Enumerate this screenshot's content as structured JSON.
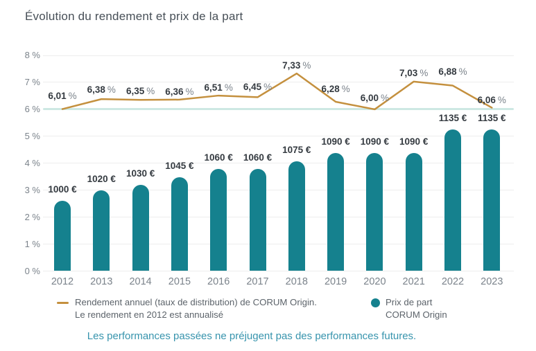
{
  "title": "Évolution du rendement et prix de la part",
  "chart_data": {
    "type": "bar+line",
    "categories": [
      "2012",
      "2013",
      "2014",
      "2015",
      "2016",
      "2017",
      "2018",
      "2019",
      "2020",
      "2021",
      "2022",
      "2023"
    ],
    "series": [
      {
        "name": "Rendement annuel (taux de distribution) de CORUM Origin",
        "type": "line",
        "unit": "%",
        "color": "#c4903e",
        "values": [
          6.01,
          6.38,
          6.35,
          6.36,
          6.51,
          6.45,
          7.33,
          6.28,
          6.0,
          7.03,
          6.88,
          6.06
        ],
        "labels": [
          "6,01 %",
          "6,38 %",
          "6,35 %",
          "6,36 %",
          "6,51 %",
          "6,45 %",
          "7,33 %",
          "6,28 %",
          "6,00 %",
          "7,03 %",
          "6,88 %",
          "6,06 %"
        ]
      },
      {
        "name": "Prix de part CORUM Origin",
        "type": "bar",
        "unit": "€",
        "color": "#15818e",
        "values": [
          1000,
          1020,
          1030,
          1045,
          1060,
          1060,
          1075,
          1090,
          1090,
          1090,
          1135,
          1135
        ],
        "labels": [
          "1000 €",
          "1020 €",
          "1030 €",
          "1045 €",
          "1060 €",
          "1060 €",
          "1075 €",
          "1090 €",
          "1090 €",
          "1090 €",
          "1135 €",
          "1135 €"
        ]
      }
    ],
    "y_axis": {
      "min": 0,
      "max": 8,
      "tick_labels": [
        "0 %",
        "1 %",
        "2 %",
        "3 %",
        "4 %",
        "5 %",
        "6 %",
        "7 %",
        "8 %"
      ],
      "highlight": {
        "value": 6,
        "color": "#cde8e3"
      }
    },
    "grid": "horizontal",
    "legend_position": "bottom",
    "label_dy": [
      19,
      13,
      12,
      11,
      11,
      14,
      11,
      18,
      16,
      12,
      20,
      11
    ]
  },
  "legend": {
    "line_label_1": "Rendement annuel (taux de distribution) de CORUM Origin.",
    "line_label_2": "Le rendement en 2012 est annualisé",
    "bar_label_1": "Prix de part",
    "bar_label_2": "CORUM Origin"
  },
  "footer": {
    "disclaimer": "Les performances passées ne préjugent pas des performances futures."
  },
  "colors": {
    "bar": "#15818e",
    "line": "#c4903e",
    "highlight_line": "#cde8e3",
    "disclaimer_text": "#3794ad"
  }
}
